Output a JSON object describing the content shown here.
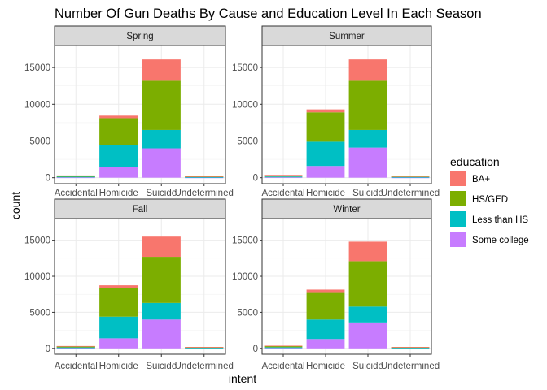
{
  "chart_data": {
    "type": "bar",
    "stacked": true,
    "title": "Number Of Gun Deaths By Cause and Education Level In Each Season",
    "xlabel": "intent",
    "ylabel": "count",
    "categories": [
      "Accidental",
      "Homicide",
      "Suicide",
      "Undetermined"
    ],
    "ylim": [
      0,
      18000
    ],
    "yticks": [
      0,
      5000,
      10000,
      15000
    ],
    "grid": true,
    "legend": {
      "title": "education",
      "placement": "right",
      "items": [
        {
          "name": "BA+",
          "color": "#F8766D"
        },
        {
          "name": "HS/GED",
          "color": "#7CAE00"
        },
        {
          "name": "Less than HS",
          "color": "#00BFC4"
        },
        {
          "name": "Some college",
          "color": "#C77CFF"
        }
      ]
    },
    "stack_order_bottom_to_top": [
      "Some college",
      "Less than HS",
      "HS/GED",
      "BA+"
    ],
    "facets": [
      {
        "title": "Spring",
        "series": [
          {
            "name": "BA+",
            "values": [
              30,
              350,
              2900,
              30
            ]
          },
          {
            "name": "HS/GED",
            "values": [
              150,
              3700,
              6700,
              90
            ]
          },
          {
            "name": "Less than HS",
            "values": [
              90,
              2900,
              2500,
              50
            ]
          },
          {
            "name": "Some college",
            "values": [
              40,
              1500,
              4000,
              30
            ]
          }
        ]
      },
      {
        "title": "Summer",
        "series": [
          {
            "name": "BA+",
            "values": [
              40,
              400,
              2900,
              40
            ]
          },
          {
            "name": "HS/GED",
            "values": [
              180,
              4000,
              6700,
              90
            ]
          },
          {
            "name": "Less than HS",
            "values": [
              110,
              3300,
              2400,
              60
            ]
          },
          {
            "name": "Some college",
            "values": [
              50,
              1600,
              4100,
              30
            ]
          }
        ]
      },
      {
        "title": "Fall",
        "series": [
          {
            "name": "BA+",
            "values": [
              30,
              350,
              2800,
              30
            ]
          },
          {
            "name": "HS/GED",
            "values": [
              160,
              4000,
              6400,
              90
            ]
          },
          {
            "name": "Less than HS",
            "values": [
              100,
              3000,
              2300,
              50
            ]
          },
          {
            "name": "Some college",
            "values": [
              40,
              1400,
              4000,
              30
            ]
          }
        ]
      },
      {
        "title": "Winter",
        "series": [
          {
            "name": "BA+",
            "values": [
              40,
              350,
              2700,
              30
            ]
          },
          {
            "name": "HS/GED",
            "values": [
              180,
              3800,
              6300,
              90
            ]
          },
          {
            "name": "Less than HS",
            "values": [
              110,
              2700,
              2200,
              50
            ]
          },
          {
            "name": "Some college",
            "values": [
              50,
              1300,
              3600,
              30
            ]
          }
        ]
      }
    ]
  }
}
